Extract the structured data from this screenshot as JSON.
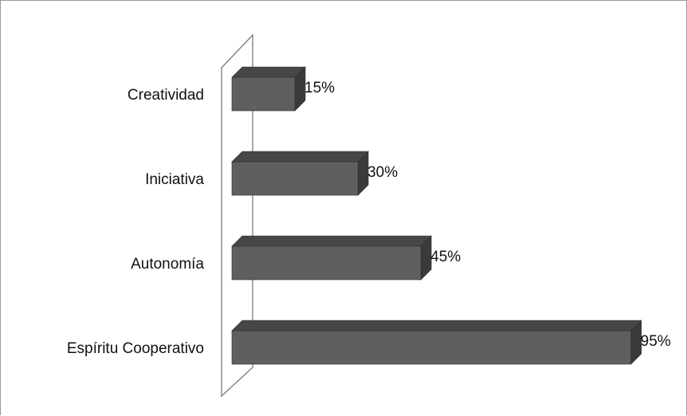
{
  "chart_data": {
    "type": "bar",
    "orientation": "horizontal",
    "style": "3d",
    "categories": [
      "Creatividad",
      "Iniciativa",
      "Autonomía",
      "Espíritu Cooperativo"
    ],
    "values": [
      15,
      30,
      45,
      95
    ],
    "value_labels": [
      "15%",
      "30%",
      "45%",
      "95%"
    ],
    "value_unit": "%",
    "xlim": [
      0,
      100
    ],
    "grid": false,
    "legend": "none",
    "colors": {
      "bar_front": "#5f5f5f",
      "bar_top": "#464646",
      "bar_side": "#3a3a3a",
      "bar_edge": "#2e2e2e",
      "axis_wall": "#7a7a7a",
      "text": "#111111"
    }
  }
}
